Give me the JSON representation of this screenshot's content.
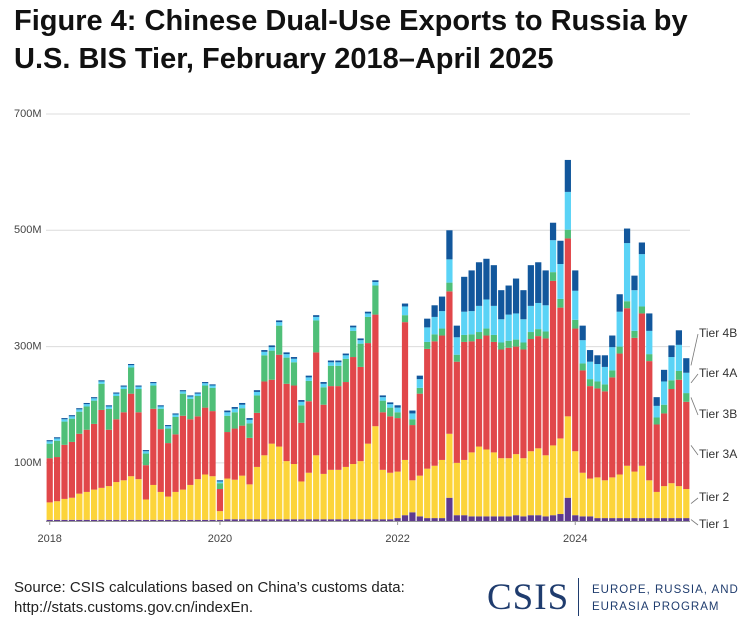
{
  "chart_data": {
    "type": "stacked_bar",
    "title": "Figure 4: Chinese Dual-Use Exports to Russia by U.S. BIS Tier, February 2018–April 2025",
    "categories": [
      "2018",
      null,
      null,
      null,
      null,
      null,
      null,
      null,
      null,
      null,
      null,
      null,
      null,
      null,
      null,
      null,
      null,
      null,
      null,
      null,
      null,
      null,
      null,
      "2020",
      null,
      null,
      null,
      null,
      null,
      null,
      null,
      null,
      null,
      null,
      null,
      null,
      null,
      null,
      null,
      null,
      null,
      null,
      null,
      null,
      null,
      null,
      null,
      "2022",
      null,
      null,
      null,
      null,
      null,
      null,
      null,
      null,
      null,
      null,
      null,
      null,
      null,
      null,
      null,
      null,
      null,
      null,
      null,
      null,
      null,
      null,
      null,
      "2024",
      null,
      null,
      null,
      null,
      null,
      null,
      null,
      null,
      null,
      null,
      null,
      null,
      null,
      null,
      null
    ],
    "ylim": [
      0,
      700
    ],
    "yticks": [
      {
        "value": 100,
        "label": "100M"
      },
      {
        "value": 300,
        "label": "300M"
      },
      {
        "value": 500,
        "label": "500M"
      },
      {
        "value": 700,
        "label": "700M"
      }
    ],
    "grid": true,
    "legend": "right",
    "series": [
      {
        "name": "Tier 1",
        "color": "#5e3a8f",
        "values": [
          2,
          2,
          2,
          2,
          2,
          2,
          2,
          2,
          2,
          2,
          2,
          2,
          2,
          2,
          2,
          2,
          2,
          2,
          2,
          2,
          2,
          2,
          2,
          2,
          3,
          3,
          3,
          3,
          3,
          3,
          3,
          3,
          3,
          3,
          3,
          3,
          3,
          3,
          3,
          3,
          3,
          3,
          3,
          3,
          3,
          3,
          3,
          5,
          10,
          15,
          8,
          5,
          5,
          5,
          40,
          10,
          10,
          8,
          8,
          8,
          8,
          8,
          8,
          10,
          8,
          10,
          10,
          8,
          10,
          12,
          40,
          10,
          8,
          8,
          5,
          5,
          5,
          5,
          5,
          5,
          5,
          5,
          5,
          5,
          5,
          5,
          5
        ]
      },
      {
        "name": "Tier 2",
        "color": "#fcd43a",
        "values": [
          30,
          32,
          36,
          38,
          45,
          48,
          52,
          55,
          58,
          65,
          68,
          75,
          70,
          35,
          60,
          48,
          40,
          48,
          52,
          60,
          70,
          78,
          75,
          15,
          70,
          68,
          75,
          60,
          90,
          110,
          130,
          125,
          100,
          95,
          65,
          80,
          110,
          78,
          85,
          85,
          90,
          95,
          100,
          130,
          160,
          85,
          80,
          80,
          95,
          55,
          70,
          85,
          90,
          100,
          110,
          90,
          95,
          110,
          120,
          115,
          110,
          100,
          100,
          105,
          100,
          110,
          115,
          105,
          120,
          130,
          140,
          110,
          75,
          65,
          70,
          65,
          70,
          75,
          90,
          80,
          90,
          65,
          45,
          55,
          60,
          55,
          50
        ]
      },
      {
        "name": "Tier 3A",
        "color": "#e1474a",
        "values": [
          76,
          76,
          93,
          96,
          103,
          107,
          113,
          134,
          97,
          108,
          117,
          142,
          115,
          59,
          131,
          108,
          92,
          99,
          127,
          113,
          108,
          115,
          112,
          38,
          80,
          88,
          86,
          80,
          93,
          127,
          110,
          158,
          133,
          135,
          101,
          123,
          177,
          119,
          144,
          144,
          146,
          184,
          162,
          173,
          192,
          99,
          97,
          92,
          237,
          95,
          141,
          206,
          214,
          214,
          245,
          174,
          203,
          191,
          185,
          196,
          190,
          187,
          190,
          185,
          187,
          193,
          193,
          201,
          283,
          225,
          306,
          211,
          176,
          159,
          153,
          153,
          172,
          208,
          271,
          230,
          262,
          205,
          116,
          125,
          162,
          183,
          150
        ]
      },
      {
        "name": "Tier 3B",
        "color": "#4fbf78",
        "values": [
          25,
          28,
          40,
          40,
          38,
          40,
          40,
          45,
          36,
          40,
          40,
          45,
          40,
          20,
          40,
          35,
          25,
          30,
          38,
          35,
          35,
          38,
          40,
          10,
          28,
          28,
          30,
          25,
          30,
          45,
          50,
          50,
          45,
          40,
          30,
          35,
          55,
          30,
          35,
          35,
          40,
          45,
          40,
          45,
          50,
          20,
          15,
          10,
          12,
          10,
          10,
          12,
          12,
          12,
          15,
          12,
          12,
          12,
          12,
          12,
          12,
          12,
          12,
          12,
          12,
          12,
          12,
          12,
          15,
          15,
          15,
          15,
          12,
          12,
          12,
          12,
          12,
          12,
          12,
          12,
          12,
          12,
          12,
          15,
          15,
          15,
          15
        ]
      },
      {
        "name": "Tier 4A",
        "color": "#5ad3f6",
        "values": [
          4,
          4,
          4,
          4,
          4,
          4,
          4,
          4,
          4,
          4,
          4,
          4,
          4,
          4,
          4,
          4,
          4,
          4,
          4,
          4,
          4,
          4,
          4,
          3,
          6,
          6,
          6,
          6,
          6,
          6,
          6,
          6,
          6,
          6,
          6,
          6,
          6,
          6,
          6,
          6,
          6,
          6,
          6,
          6,
          6,
          6,
          6,
          8,
          15,
          10,
          15,
          25,
          30,
          30,
          40,
          30,
          40,
          40,
          45,
          50,
          50,
          40,
          45,
          45,
          40,
          45,
          45,
          45,
          55,
          60,
          65,
          50,
          40,
          30,
          30,
          30,
          40,
          60,
          100,
          70,
          90,
          40,
          20,
          40,
          40,
          45,
          35
        ]
      },
      {
        "name": "Tier 4B",
        "color": "#12579c",
        "values": [
          2,
          2,
          2,
          2,
          2,
          2,
          2,
          2,
          2,
          2,
          2,
          2,
          2,
          2,
          2,
          2,
          2,
          2,
          2,
          2,
          2,
          2,
          2,
          2,
          3,
          3,
          3,
          3,
          3,
          3,
          3,
          3,
          3,
          3,
          3,
          3,
          3,
          3,
          3,
          3,
          3,
          3,
          3,
          3,
          3,
          3,
          3,
          4,
          5,
          5,
          6,
          15,
          20,
          25,
          50,
          20,
          60,
          70,
          75,
          70,
          70,
          50,
          50,
          60,
          50,
          70,
          70,
          60,
          30,
          40,
          55,
          35,
          25,
          20,
          15,
          20,
          20,
          30,
          25,
          25,
          20,
          30,
          15,
          20,
          20,
          25,
          25
        ]
      }
    ]
  },
  "source": [
    "Source: CSIS calculations based on China’s customs data:",
    "http://stats.customs.gov.cn/indexEn."
  ],
  "logo": {
    "name": "CSIS",
    "program": [
      "EUROPE, RUSSIA, AND",
      "EURASIA PROGRAM"
    ]
  }
}
